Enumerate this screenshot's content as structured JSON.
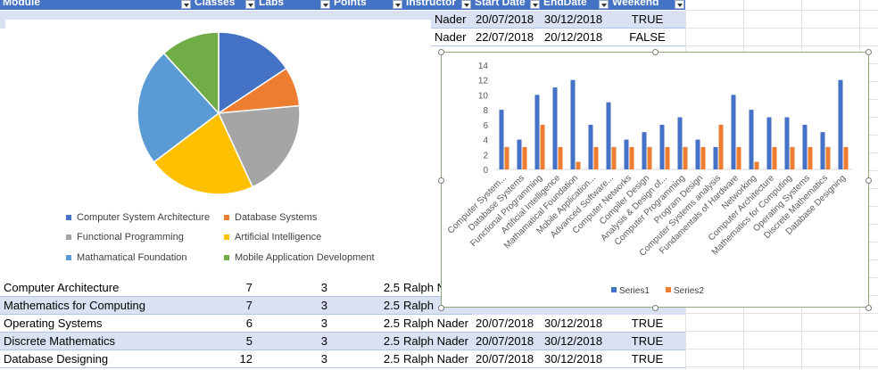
{
  "headers": [
    {
      "label": "Module",
      "x": 0,
      "w": 215
    },
    {
      "label": "Classes",
      "x": 215,
      "w": 72
    },
    {
      "label": "Labs",
      "x": 287,
      "w": 84
    },
    {
      "label": "Points",
      "x": 371,
      "w": 81
    },
    {
      "label": "Instructor",
      "x": 452,
      "w": 77
    },
    {
      "label": "Start Date",
      "x": 529,
      "w": 77
    },
    {
      "label": "EndDate",
      "x": 606,
      "w": 77
    },
    {
      "label": "Weekend",
      "x": 683,
      "w": 85
    }
  ],
  "top_rows": [
    {
      "instructor": "Nader",
      "start": "20/07/2018",
      "end": "30/12/2018",
      "weekend": "TRUE"
    },
    {
      "instructor": "Nader",
      "start": "22/07/2018",
      "end": "20/12/2018",
      "weekend": "FALSE"
    }
  ],
  "bottom_rows": [
    {
      "module": "Computer Architecture",
      "classes": "7",
      "labs": "3",
      "points": "2.5",
      "instructor": "Ralph N"
    },
    {
      "module": "Mathematics for Computing",
      "classes": "7",
      "labs": "3",
      "points": "2.5",
      "instructor": "Ralph"
    },
    {
      "module": "Operating Systems",
      "classes": "6",
      "labs": "3",
      "points": "2.5",
      "instructor": "Ralph Nader",
      "start": "20/07/2018",
      "end": "30/12/2018",
      "weekend": "TRUE"
    },
    {
      "module": "Discrete Mathematics",
      "classes": "5",
      "labs": "3",
      "points": "2.5",
      "instructor": "Ralph Nader",
      "start": "20/07/2018",
      "end": "30/12/2018",
      "weekend": "TRUE"
    },
    {
      "module": "Database Designing",
      "classes": "12",
      "labs": "3",
      "points": "2.5",
      "instructor": "Ralph Nader",
      "start": "20/07/2018",
      "end": "30/12/2018",
      "weekend": "TRUE"
    }
  ],
  "chart_data": [
    {
      "type": "pie",
      "labels": [
        "Computer System Architecture",
        "Database Systems",
        "Functional Programming",
        "Artificial Intelligence",
        "Mathamatical Foundation",
        "Mobile Application Development"
      ],
      "values": [
        8,
        4,
        10,
        11,
        12,
        6
      ],
      "colors": [
        "#4472c4",
        "#ed7d31",
        "#a5a5a5",
        "#ffc000",
        "#5b9bd5",
        "#70ad47"
      ],
      "legend_position": "bottom"
    },
    {
      "type": "bar",
      "categories": [
        "Computer System...",
        "Database Systems",
        "Functional Programming",
        "Artificial Intelligence",
        "Mathamatical Foundation",
        "Mobile Application...",
        "Advanced Software...",
        "Computer Networks",
        "Compiler Design",
        "Analysis & Design of...",
        "Computer Programming",
        "Program Design",
        "Computer Systems analysis",
        "Fundamentals of Hardware",
        "Networking",
        "Computer Architecture",
        "Mathematics for Computing",
        "Operating Systems",
        "Discrete Mathematics",
        "Database Designing"
      ],
      "series": [
        {
          "name": "Series1",
          "values": [
            8,
            4,
            10,
            11,
            12,
            6,
            9,
            4,
            5,
            6,
            7,
            4,
            3,
            10,
            8,
            7,
            7,
            6,
            5,
            12
          ],
          "color": "#4472c4"
        },
        {
          "name": "Series2",
          "values": [
            3,
            3,
            6,
            3,
            1,
            3,
            3,
            3,
            3,
            3,
            3,
            3,
            6,
            3,
            1,
            3,
            3,
            3,
            3,
            3
          ],
          "color": "#ed7d31"
        }
      ],
      "ylim": [
        0,
        14
      ],
      "yticks": [
        "0",
        "2",
        "4",
        "6",
        "8",
        "10",
        "12",
        "14"
      ],
      "grid": false,
      "legend_position": "bottom"
    }
  ]
}
